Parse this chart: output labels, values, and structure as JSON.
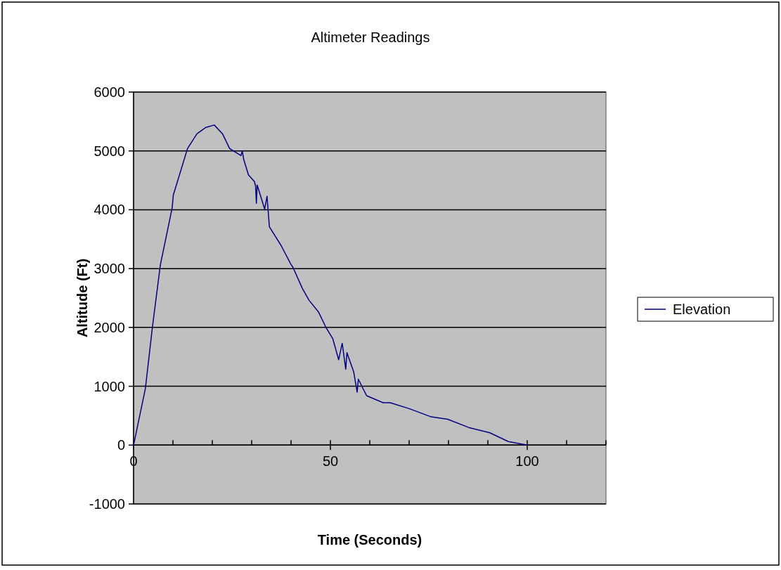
{
  "chart_data": {
    "type": "line",
    "title": "Altimeter Readings",
    "xlabel": "Time (Seconds)",
    "ylabel": "Altitude (Ft)",
    "series": [
      {
        "name": "Elevation",
        "color": "#000080",
        "x": [
          0,
          3.0,
          4.8,
          6.8,
          9.8,
          10.1,
          13.7,
          16.1,
          18.4,
          20.5,
          22.6,
          24.4,
          27.3,
          27.6,
          28.0,
          29.2,
          30.7,
          31.0,
          31.2,
          31.4,
          33.3,
          33.9,
          34.5,
          37.5,
          39.9,
          40.5,
          42.9,
          44.6,
          47.0,
          48.8,
          50.6,
          52.1,
          53.0,
          53.9,
          54.2,
          55.9,
          56.8,
          57.1,
          59.2,
          63.4,
          65.2,
          70.0,
          75.6,
          79.8,
          85.1,
          90.5,
          95.2,
          100
        ],
        "values": [
          0,
          960,
          2010,
          3060,
          4030,
          4250,
          5040,
          5290,
          5400,
          5440,
          5290,
          5040,
          4920,
          5000,
          4850,
          4590,
          4480,
          4400,
          4110,
          4420,
          4010,
          4230,
          3710,
          3390,
          3080,
          3020,
          2660,
          2460,
          2260,
          2010,
          1810,
          1450,
          1730,
          1290,
          1570,
          1250,
          900,
          1120,
          840,
          720,
          720,
          620,
          480,
          440,
          300,
          210,
          60,
          0
        ]
      }
    ],
    "xlim": [
      0,
      120
    ],
    "xticks": [
      0,
      {
        "value": 10,
        "label": null
      },
      {
        "value": 20,
        "label": null
      },
      {
        "value": 30,
        "label": null
      },
      {
        "value": 40,
        "label": null
      },
      50,
      {
        "value": 60,
        "label": null
      },
      {
        "value": 70,
        "label": null
      },
      {
        "value": 80,
        "label": null
      },
      {
        "value": 90,
        "label": null
      },
      100,
      {
        "value": 110,
        "label": null
      },
      {
        "value": 120,
        "label": null
      }
    ],
    "ylim": [
      -1000,
      6000
    ],
    "yticks": [
      -1000,
      0,
      1000,
      2000,
      3000,
      4000,
      5000,
      6000
    ],
    "grid": "y",
    "legend": "right",
    "marker": "none",
    "line_style": "solid"
  }
}
